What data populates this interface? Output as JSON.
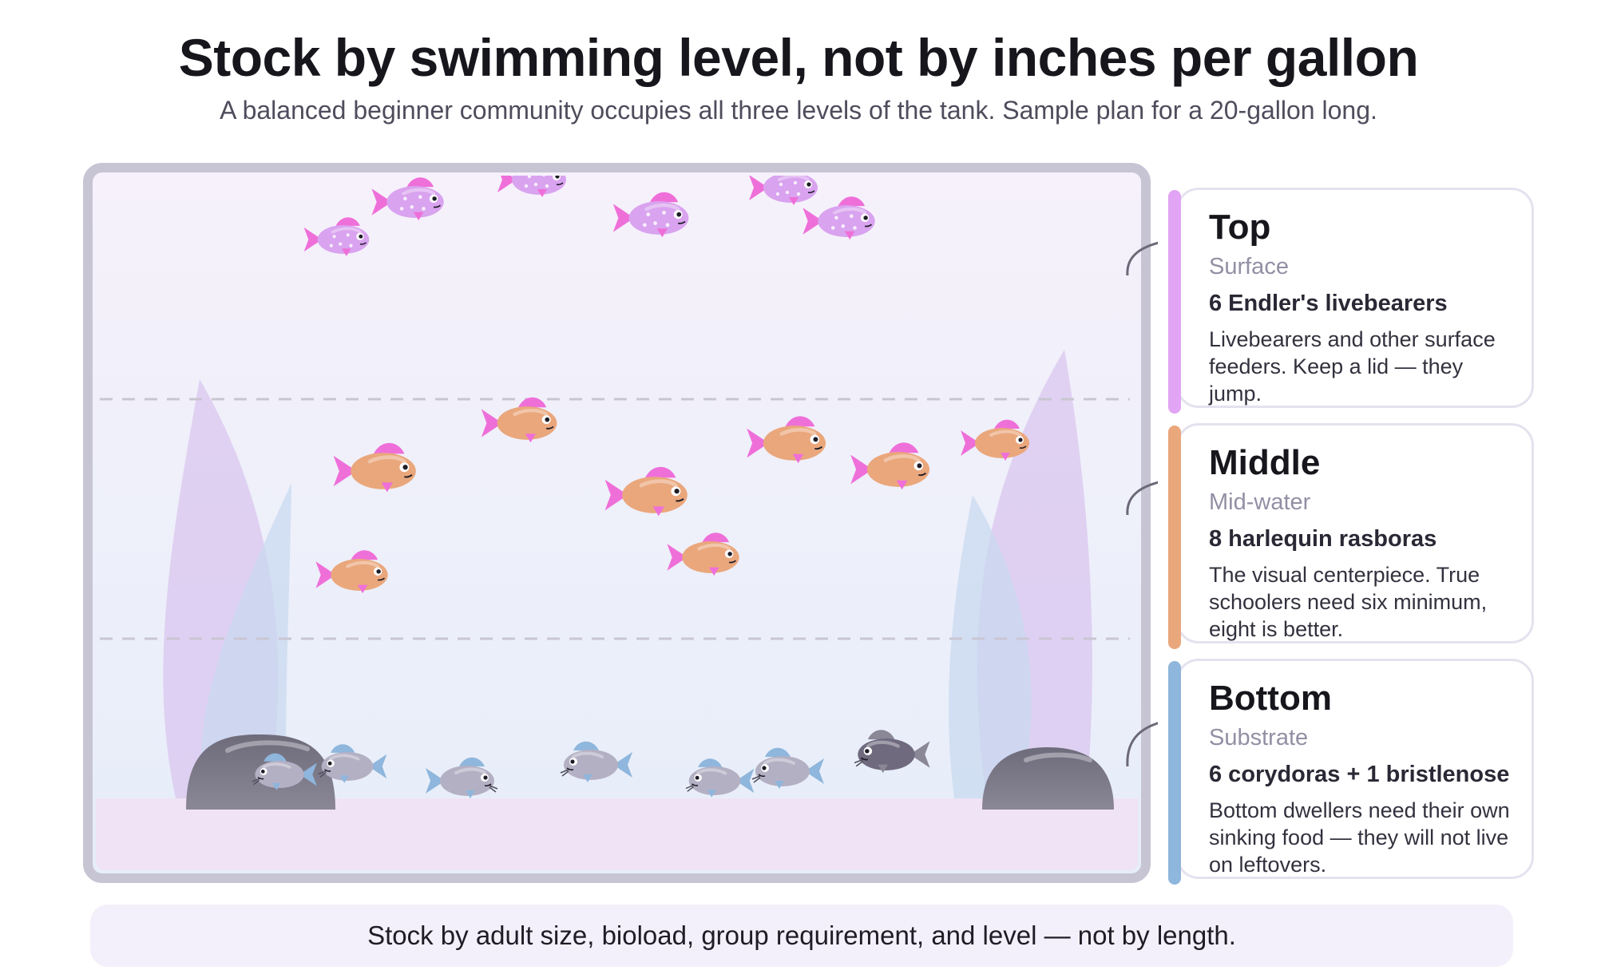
{
  "header": {
    "title": "Stock by swimming level, not by inches per gallon",
    "subtitle": "A balanced beginner community occupies all three levels of the tank. Sample plan for a 20-gallon long."
  },
  "levels": [
    {
      "name": "Top",
      "zone": "Surface",
      "species": "6 Endler's livebearers",
      "description": "Livebearers and other surface feeders. Keep a lid — they jump.",
      "color": "#e2a4f4"
    },
    {
      "name": "Middle",
      "zone": "Mid-water",
      "species": "8 harlequin rasboras",
      "description": "The visual centerpiece. True schoolers need six minimum, eight is better.",
      "color": "#eaa77c"
    },
    {
      "name": "Bottom",
      "zone": "Substrate",
      "species": "6 corydoras + 1 bristlenose",
      "description": "Bottom dwellers need their own sinking food — they will not live on leftovers.",
      "color": "#8fb6dc"
    }
  ],
  "footer": {
    "note": "Stock by adult size, bioload, group requirement, and level — not by length."
  },
  "colors": {
    "endler": "#d9a3ef",
    "rasbora": "#eaa77c",
    "fin_accent": "#ef6fd9",
    "corydoras": "#b4b0c4",
    "bristlenose": "#6f6a7e",
    "rock": "#6b6878",
    "tank_frame": "#c7c4d4"
  }
}
